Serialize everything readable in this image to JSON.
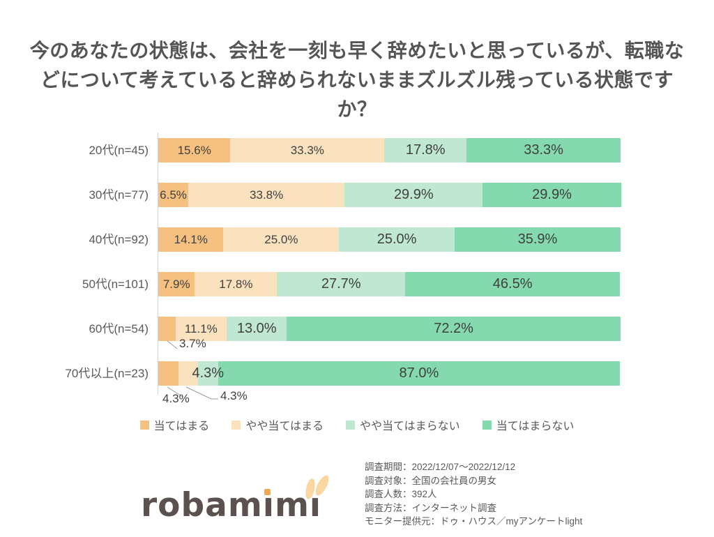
{
  "title": "今のあなたの状態は、会社を一刻も早く辞めたいと思っているが、転職などについて考えていると辞められないままズルズル残っている状態ですか？",
  "chart_data": {
    "type": "bar",
    "orientation": "horizontal-stacked",
    "value_unit": "%",
    "xlim": [
      0,
      100
    ],
    "grid": false,
    "legend_position": "bottom",
    "categories": [
      "20代(n=45)",
      "30代(n=77)",
      "40代(n=92)",
      "50代(n=101)",
      "60代(n=54)",
      "70代以上(n=23)"
    ],
    "series": [
      {
        "name": "当てはまる",
        "color": "#F5C181",
        "values": [
          15.6,
          6.5,
          14.1,
          7.9,
          3.7,
          4.3
        ]
      },
      {
        "name": "やや当てはまる",
        "color": "#FBE2BE",
        "values": [
          33.3,
          33.8,
          25.0,
          17.8,
          11.1,
          4.3
        ]
      },
      {
        "name": "やや当てはまらない",
        "color": "#BFE7D1",
        "values": [
          17.8,
          29.9,
          25.0,
          27.7,
          13.0,
          4.3
        ]
      },
      {
        "name": "当てはまらない",
        "color": "#84D9AE",
        "values": [
          33.3,
          29.9,
          35.9,
          46.5,
          72.2,
          87.0
        ]
      }
    ]
  },
  "footer": {
    "logo_text": "robamimi",
    "survey_info": [
      "調査期間：2022/12/07～2022/12/12",
      "調査対象：全国の会社員の男女",
      "調査人数：392人",
      "調査方法：インターネット調査",
      "モニター提供元：ドゥ・ハウス／myアンケートlight"
    ]
  },
  "colors": {
    "title_text": "#555555",
    "data_label": "#3F3F3F",
    "axis_line": "#D6D6D6",
    "callout_line": "#9A9A9A",
    "logo_text": "#5B5250",
    "logo_accent": "#F2A94E",
    "logo_ears": "#FAD7A0"
  }
}
